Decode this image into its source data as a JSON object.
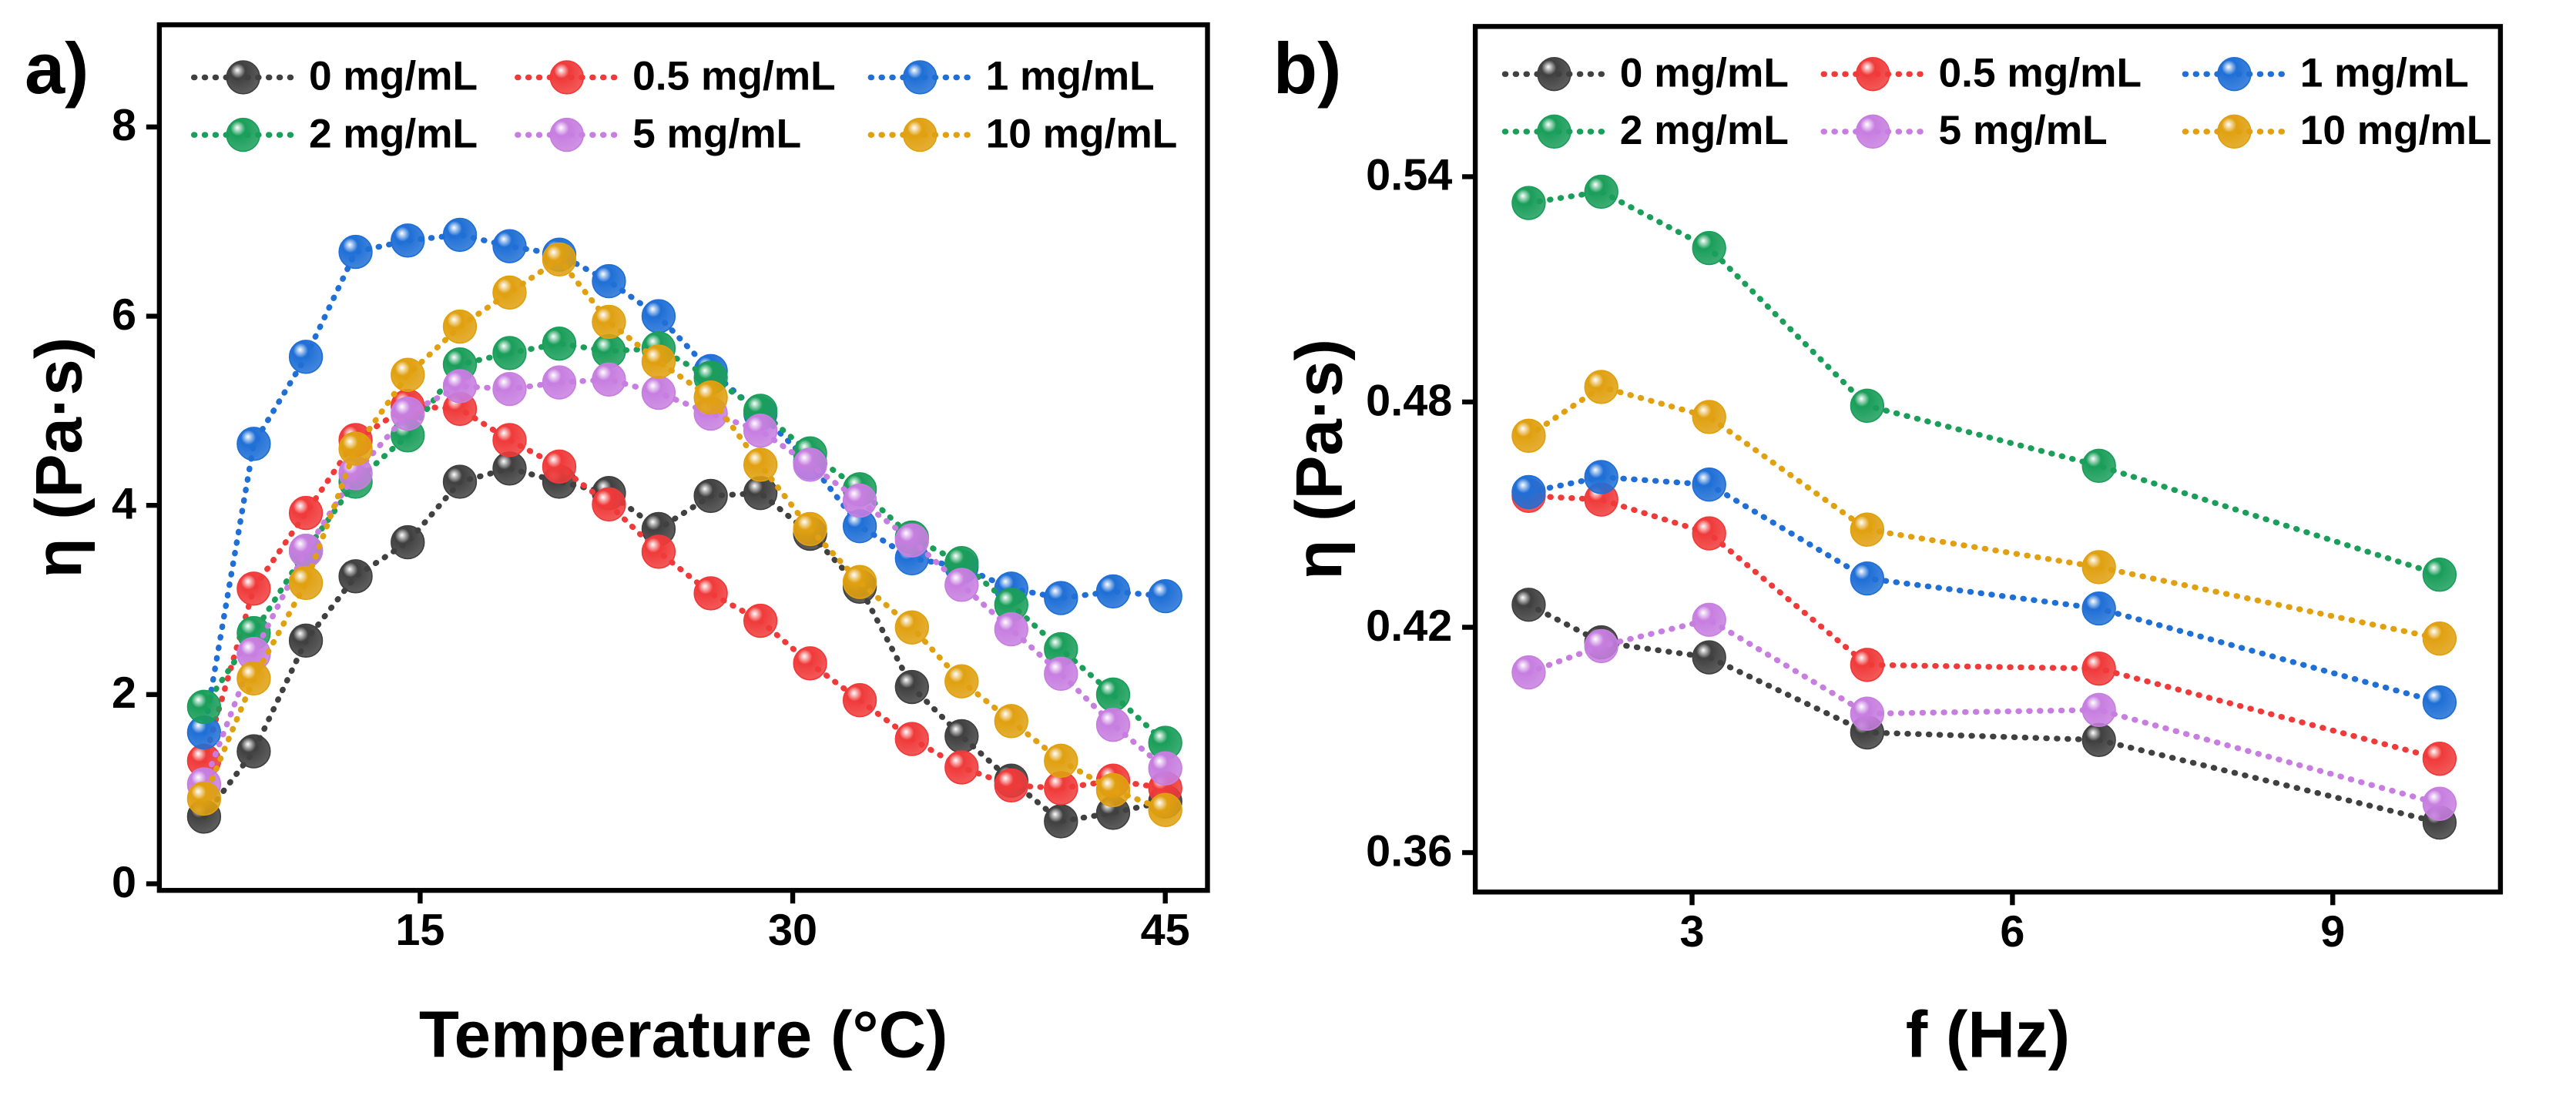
{
  "chart_data": [
    {
      "type": "line",
      "panel_label": "a)",
      "x_label": "Temperature (°C)",
      "y_label": "η (Pa·s)",
      "x": [
        6.3,
        8.3,
        10.4,
        12.4,
        14.5,
        16.6,
        18.6,
        20.6,
        22.6,
        24.6,
        26.7,
        28.7,
        30.7,
        32.7,
        34.8,
        36.8,
        38.8,
        40.8,
        42.9,
        45
      ],
      "xlim": [
        4.5,
        46.7
      ],
      "xticks": [
        15,
        30,
        45
      ],
      "ylim": [
        -0.07,
        9.08
      ],
      "yticks": [
        0,
        2,
        4,
        6,
        8
      ],
      "series": [
        {
          "name": "0 mg/mL",
          "color": "#404040",
          "values": [
            0.71,
            1.4,
            2.57,
            3.25,
            3.61,
            4.25,
            4.39,
            4.25,
            4.13,
            3.75,
            4.1,
            4.13,
            3.7,
            3.14,
            2.08,
            1.56,
            1.09,
            0.66,
            0.75,
            0.87
          ]
        },
        {
          "name": "0.5 mg/mL",
          "color": "#f03a3a",
          "values": [
            1.3,
            3.12,
            3.92,
            4.69,
            5.05,
            5.02,
            4.69,
            4.41,
            4.01,
            3.51,
            3.07,
            2.78,
            2.33,
            1.94,
            1.53,
            1.23,
            1.04,
            1.01,
            1.09,
            1.01
          ]
        },
        {
          "name": "1 mg/mL",
          "color": "#1f6fd6",
          "values": [
            1.6,
            4.65,
            5.57,
            6.68,
            6.8,
            6.86,
            6.74,
            6.65,
            6.37,
            6.0,
            5.42,
            4.97,
            4.45,
            3.78,
            3.44,
            3.35,
            3.12,
            3.02,
            3.09,
            3.04
          ]
        },
        {
          "name": "2 mg/mL",
          "color": "#1a9e5a",
          "values": [
            1.87,
            2.65,
            3.52,
            4.25,
            4.74,
            5.49,
            5.61,
            5.71,
            5.63,
            5.66,
            5.35,
            5.0,
            4.55,
            4.17,
            3.66,
            3.39,
            2.95,
            2.48,
            2.0,
            1.49
          ]
        },
        {
          "name": "5 mg/mL",
          "color": "#c77ee0",
          "values": [
            1.05,
            2.43,
            3.52,
            4.34,
            4.97,
            5.26,
            5.23,
            5.3,
            5.33,
            5.19,
            4.97,
            4.79,
            4.43,
            4.05,
            3.63,
            3.16,
            2.69,
            2.22,
            1.68,
            1.22
          ]
        },
        {
          "name": "10 mg/mL",
          "color": "#e0a010",
          "values": [
            0.9,
            2.17,
            3.18,
            4.6,
            5.38,
            5.89,
            6.25,
            6.6,
            5.94,
            5.52,
            5.14,
            4.43,
            3.75,
            3.19,
            2.71,
            2.14,
            1.72,
            1.3,
            0.99,
            0.78
          ]
        }
      ]
    },
    {
      "type": "line",
      "panel_label": "b)",
      "x_label": "f (Hz)",
      "y_label": "η (Pa·s)",
      "x": [
        1.47,
        2.15,
        3.16,
        4.64,
        6.81,
        10
      ],
      "xlim": [
        0.97,
        10.57
      ],
      "xticks": [
        3,
        6,
        9
      ],
      "ylim": [
        0.3495,
        0.58
      ],
      "yticks": [
        0.36,
        0.42,
        0.48,
        0.54
      ],
      "series": [
        {
          "name": "0 mg/mL",
          "color": "#404040",
          "values": [
            0.426,
            0.416,
            0.412,
            0.392,
            0.39,
            0.368
          ]
        },
        {
          "name": "0.5 mg/mL",
          "color": "#f03a3a",
          "values": [
            0.455,
            0.454,
            0.445,
            0.41,
            0.409,
            0.385
          ]
        },
        {
          "name": "1 mg/mL",
          "color": "#1f6fd6",
          "values": [
            0.456,
            0.46,
            0.458,
            0.433,
            0.425,
            0.4
          ]
        },
        {
          "name": "2 mg/mL",
          "color": "#1a9e5a",
          "values": [
            0.533,
            0.536,
            0.521,
            0.479,
            0.463,
            0.434
          ]
        },
        {
          "name": "5 mg/mL",
          "color": "#c77ee0",
          "values": [
            0.408,
            0.415,
            0.422,
            0.397,
            0.398,
            0.373
          ]
        },
        {
          "name": "10 mg/mL",
          "color": "#e0a010",
          "values": [
            0.471,
            0.484,
            0.476,
            0.446,
            0.436,
            0.417
          ]
        }
      ]
    }
  ]
}
